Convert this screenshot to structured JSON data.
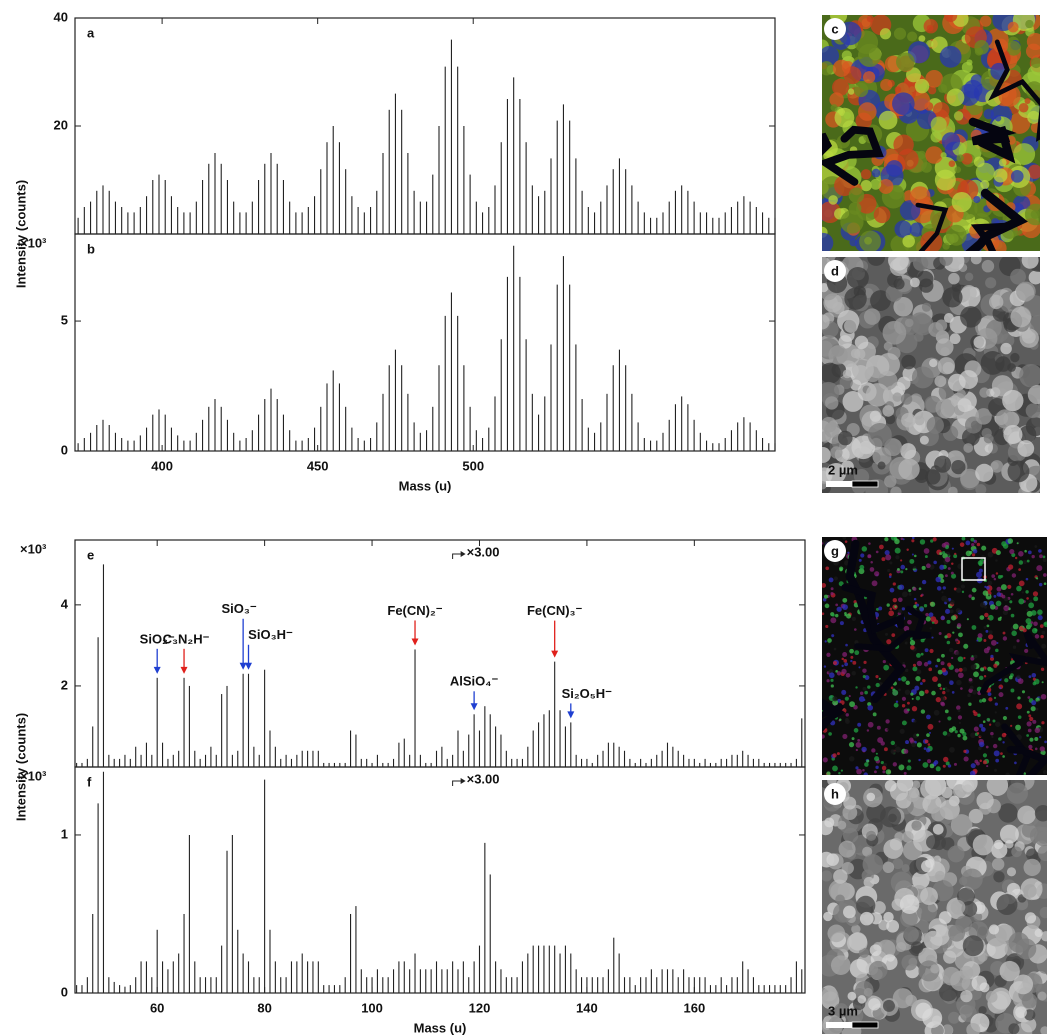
{
  "chart_data": [
    {
      "type": "spectrum",
      "panel_label": "a",
      "ylabel": "Intensity (counts)",
      "color": "#222222",
      "xlim": [
        372,
        597
      ],
      "ylim": [
        0,
        40
      ],
      "yticks": [
        20,
        40
      ],
      "x": [
        373,
        375,
        377,
        379,
        381,
        383,
        385,
        387,
        389,
        391,
        393,
        395,
        397,
        399,
        401,
        403,
        405,
        407,
        409,
        411,
        413,
        415,
        417,
        419,
        421,
        423,
        425,
        427,
        429,
        431,
        433,
        435,
        437,
        439,
        441,
        443,
        445,
        447,
        449,
        451,
        453,
        455,
        457,
        459,
        461,
        463,
        465,
        467,
        469,
        471,
        473,
        475,
        477,
        479,
        481,
        483,
        485,
        487,
        489,
        491,
        493,
        495,
        497,
        499,
        501,
        503,
        505,
        507,
        509,
        511,
        513,
        515,
        517,
        519,
        521,
        523,
        525,
        527,
        529,
        531,
        533,
        535,
        537,
        539,
        541,
        543,
        545,
        547,
        549,
        551,
        553,
        555,
        557,
        559,
        561,
        563,
        565,
        567,
        569,
        571,
        573,
        575,
        577,
        579,
        581,
        583,
        585,
        587,
        589,
        591,
        593,
        595,
        597
      ],
      "values": [
        3,
        5,
        6,
        8,
        9,
        8,
        6,
        5,
        4,
        4,
        5,
        7,
        10,
        11,
        10,
        7,
        5,
        4,
        4,
        6,
        10,
        13,
        15,
        13,
        10,
        6,
        4,
        4,
        6,
        10,
        13,
        15,
        13,
        10,
        6,
        4,
        4,
        5,
        7,
        12,
        17,
        20,
        17,
        12,
        7,
        5,
        4,
        5,
        8,
        15,
        23,
        26,
        23,
        15,
        8,
        6,
        6,
        11,
        20,
        31,
        36,
        31,
        20,
        11,
        6,
        4,
        5,
        9,
        17,
        25,
        29,
        25,
        17,
        9,
        7,
        8,
        14,
        21,
        24,
        21,
        14,
        8,
        5,
        4,
        6,
        9,
        12,
        14,
        12,
        9,
        6,
        4,
        3,
        3,
        4,
        6,
        8,
        9,
        8,
        6,
        4,
        4,
        3,
        3,
        4,
        5,
        6,
        7,
        6,
        5,
        4,
        3,
        3
      ]
    },
    {
      "type": "spectrum",
      "panel_label": "b",
      "y_multiplier": "×10³",
      "xlabel": "Mass (u)",
      "color": "#222222",
      "xlim": [
        372,
        597
      ],
      "xticks": [
        400,
        450,
        500
      ],
      "ylim": [
        0,
        8.35
      ],
      "yticks": [
        0,
        5
      ],
      "x": [
        373,
        375,
        377,
        379,
        381,
        383,
        385,
        387,
        389,
        391,
        393,
        395,
        397,
        399,
        401,
        403,
        405,
        407,
        409,
        411,
        413,
        415,
        417,
        419,
        421,
        423,
        425,
        427,
        429,
        431,
        433,
        435,
        437,
        439,
        441,
        443,
        445,
        447,
        449,
        451,
        453,
        455,
        457,
        459,
        461,
        463,
        465,
        467,
        469,
        471,
        473,
        475,
        477,
        479,
        481,
        483,
        485,
        487,
        489,
        491,
        493,
        495,
        497,
        499,
        501,
        503,
        505,
        507,
        509,
        511,
        513,
        515,
        517,
        519,
        521,
        523,
        525,
        527,
        529,
        531,
        533,
        535,
        537,
        539,
        541,
        543,
        545,
        547,
        549,
        551,
        553,
        555,
        557,
        559,
        561,
        563,
        565,
        567,
        569,
        571,
        573,
        575,
        577,
        579,
        581,
        583,
        585,
        587,
        589,
        591,
        593,
        595,
        597
      ],
      "values": [
        0.3,
        0.5,
        0.7,
        1.0,
        1.2,
        1.0,
        0.7,
        0.5,
        0.4,
        0.4,
        0.6,
        0.9,
        1.4,
        1.6,
        1.4,
        0.9,
        0.6,
        0.4,
        0.4,
        0.7,
        1.2,
        1.7,
        2.0,
        1.7,
        1.2,
        0.7,
        0.4,
        0.5,
        0.8,
        1.4,
        2.0,
        2.4,
        2.0,
        1.4,
        0.8,
        0.4,
        0.4,
        0.5,
        0.9,
        1.7,
        2.6,
        3.1,
        2.6,
        1.7,
        0.9,
        0.5,
        0.4,
        0.5,
        1.1,
        2.2,
        3.3,
        3.9,
        3.3,
        2.2,
        1.1,
        0.7,
        0.8,
        1.7,
        3.3,
        5.2,
        6.1,
        5.2,
        3.3,
        1.7,
        0.8,
        0.5,
        0.9,
        2.1,
        4.3,
        6.7,
        7.9,
        6.7,
        4.3,
        2.2,
        1.4,
        2.1,
        4.1,
        6.4,
        7.5,
        6.4,
        4.1,
        2.0,
        0.9,
        0.7,
        1.1,
        2.2,
        3.3,
        3.9,
        3.3,
        2.2,
        1.1,
        0.5,
        0.4,
        0.4,
        0.7,
        1.2,
        1.8,
        2.1,
        1.8,
        1.2,
        0.7,
        0.4,
        0.3,
        0.3,
        0.5,
        0.8,
        1.1,
        1.3,
        1.1,
        0.8,
        0.5,
        0.3,
        0.3
      ]
    },
    {
      "type": "spectrum",
      "panel_label": "e",
      "y_multiplier": "×10³",
      "ylabel": "Intensity (counts)",
      "color": "#222222",
      "xlim": [
        44.7,
        180.6
      ],
      "ylim": [
        0,
        5.6
      ],
      "yticks": [
        2,
        4
      ],
      "scale_note": {
        "x": 115,
        "label": "×3.00"
      },
      "x": [
        45,
        46,
        47,
        48,
        49,
        50,
        51,
        52,
        53,
        54,
        55,
        56,
        57,
        58,
        59,
        60,
        61,
        62,
        63,
        64,
        65,
        66,
        67,
        68,
        69,
        70,
        71,
        72,
        73,
        74,
        75,
        76,
        77,
        78,
        79,
        80,
        81,
        82,
        83,
        84,
        85,
        86,
        87,
        88,
        89,
        90,
        91,
        92,
        93,
        94,
        95,
        96,
        97,
        98,
        99,
        100,
        101,
        102,
        103,
        104,
        105,
        106,
        107,
        108,
        109,
        110,
        111,
        112,
        113,
        114,
        115,
        116,
        117,
        118,
        119,
        120,
        121,
        122,
        123,
        124,
        125,
        126,
        127,
        128,
        129,
        130,
        131,
        132,
        133,
        134,
        135,
        136,
        137,
        138,
        139,
        140,
        141,
        142,
        143,
        144,
        145,
        146,
        147,
        148,
        149,
        150,
        151,
        152,
        153,
        154,
        155,
        156,
        157,
        158,
        159,
        160,
        161,
        162,
        163,
        164,
        165,
        166,
        167,
        168,
        169,
        170,
        171,
        172,
        173,
        174,
        175,
        176,
        177,
        178,
        179,
        180
      ],
      "values": [
        0.1,
        0.1,
        0.2,
        1.0,
        3.2,
        5.0,
        0.3,
        0.2,
        0.2,
        0.3,
        0.2,
        0.5,
        0.3,
        0.6,
        0.3,
        2.2,
        0.6,
        0.2,
        0.3,
        0.4,
        2.2,
        2.0,
        0.4,
        0.2,
        0.3,
        0.5,
        0.3,
        1.8,
        2.0,
        0.3,
        0.4,
        2.3,
        2.3,
        0.5,
        0.3,
        2.4,
        0.9,
        0.5,
        0.2,
        0.3,
        0.2,
        0.3,
        0.4,
        0.4,
        0.4,
        0.4,
        0.1,
        0.1,
        0.1,
        0.1,
        0.1,
        0.9,
        0.8,
        0.2,
        0.2,
        0.1,
        0.3,
        0.1,
        0.1,
        0.2,
        0.6,
        0.7,
        0.3,
        2.9,
        0.3,
        0.1,
        0.1,
        0.4,
        0.5,
        0.2,
        0.3,
        0.9,
        0.4,
        0.8,
        1.3,
        0.9,
        1.5,
        1.3,
        1.0,
        0.8,
        0.4,
        0.2,
        0.2,
        0.2,
        0.5,
        0.9,
        1.1,
        1.3,
        1.4,
        2.6,
        1.4,
        1.0,
        1.1,
        0.3,
        0.2,
        0.2,
        0.1,
        0.3,
        0.4,
        0.6,
        0.6,
        0.5,
        0.4,
        0.2,
        0.1,
        0.2,
        0.1,
        0.2,
        0.3,
        0.4,
        0.6,
        0.5,
        0.4,
        0.3,
        0.2,
        0.2,
        0.1,
        0.2,
        0.1,
        0.1,
        0.2,
        0.2,
        0.3,
        0.3,
        0.4,
        0.3,
        0.2,
        0.2,
        0.1,
        0.1,
        0.1,
        0.1,
        0.1,
        0.1,
        0.2,
        1.2
      ],
      "annotations": [
        {
          "text": "SiO₂⁻",
          "x": 60,
          "color": "#1f3fd1"
        },
        {
          "text": "C₃N₂H⁻",
          "x": 65,
          "color": "#e0201b"
        },
        {
          "text": "SiO₃⁻",
          "x": 76,
          "color": "#1f3fd1"
        },
        {
          "text": "SiO₃H⁻",
          "x": 77,
          "color": "#1f3fd1"
        },
        {
          "text": "Fe(CN)₂⁻",
          "x": 108,
          "color": "#e0201b"
        },
        {
          "text": "AlSiO₄⁻",
          "x": 119,
          "color": "#1f3fd1"
        },
        {
          "text": "Fe(CN)₃⁻",
          "x": 134,
          "color": "#e0201b"
        },
        {
          "text": "Si₂O₅H⁻",
          "x": 137,
          "color": "#1f3fd1"
        }
      ]
    },
    {
      "type": "spectrum",
      "panel_label": "f",
      "y_multiplier": "×10³",
      "xlabel": "Mass (u)",
      "color": "#222222",
      "xlim": [
        44.7,
        180.6
      ],
      "xticks": [
        60,
        80,
        100,
        120,
        140,
        160
      ],
      "ylim": [
        0,
        1.43
      ],
      "yticks": [
        0,
        1
      ],
      "scale_note": {
        "x": 115,
        "label": "×3.00"
      },
      "x": [
        45,
        46,
        47,
        48,
        49,
        50,
        51,
        52,
        53,
        54,
        55,
        56,
        57,
        58,
        59,
        60,
        61,
        62,
        63,
        64,
        65,
        66,
        67,
        68,
        69,
        70,
        71,
        72,
        73,
        74,
        75,
        76,
        77,
        78,
        79,
        80,
        81,
        82,
        83,
        84,
        85,
        86,
        87,
        88,
        89,
        90,
        91,
        92,
        93,
        94,
        95,
        96,
        97,
        98,
        99,
        100,
        101,
        102,
        103,
        104,
        105,
        106,
        107,
        108,
        109,
        110,
        111,
        112,
        113,
        114,
        115,
        116,
        117,
        118,
        119,
        120,
        121,
        122,
        123,
        124,
        125,
        126,
        127,
        128,
        129,
        130,
        131,
        132,
        133,
        134,
        135,
        136,
        137,
        138,
        139,
        140,
        141,
        142,
        143,
        144,
        145,
        146,
        147,
        148,
        149,
        150,
        151,
        152,
        153,
        154,
        155,
        156,
        157,
        158,
        159,
        160,
        161,
        162,
        163,
        164,
        165,
        166,
        167,
        168,
        169,
        170,
        171,
        172,
        173,
        174,
        175,
        176,
        177,
        178,
        179,
        180
      ],
      "values": [
        0.05,
        0.05,
        0.1,
        0.5,
        1.2,
        1.4,
        0.1,
        0.07,
        0.05,
        0.04,
        0.05,
        0.1,
        0.2,
        0.2,
        0.1,
        0.4,
        0.2,
        0.15,
        0.2,
        0.25,
        0.5,
        1.0,
        0.2,
        0.1,
        0.1,
        0.1,
        0.1,
        0.3,
        0.9,
        1.0,
        0.4,
        0.25,
        0.2,
        0.1,
        0.1,
        1.35,
        0.4,
        0.2,
        0.1,
        0.1,
        0.2,
        0.2,
        0.25,
        0.2,
        0.2,
        0.2,
        0.05,
        0.05,
        0.05,
        0.05,
        0.1,
        0.5,
        0.55,
        0.15,
        0.1,
        0.1,
        0.15,
        0.1,
        0.1,
        0.15,
        0.2,
        0.2,
        0.15,
        0.25,
        0.15,
        0.15,
        0.15,
        0.2,
        0.15,
        0.15,
        0.2,
        0.15,
        0.2,
        0.1,
        0.2,
        0.3,
        0.95,
        0.75,
        0.2,
        0.15,
        0.1,
        0.1,
        0.1,
        0.2,
        0.25,
        0.3,
        0.3,
        0.3,
        0.3,
        0.3,
        0.25,
        0.3,
        0.25,
        0.15,
        0.1,
        0.1,
        0.1,
        0.1,
        0.1,
        0.15,
        0.35,
        0.25,
        0.1,
        0.1,
        0.05,
        0.1,
        0.1,
        0.15,
        0.1,
        0.15,
        0.15,
        0.15,
        0.1,
        0.15,
        0.1,
        0.1,
        0.1,
        0.1,
        0.05,
        0.05,
        0.1,
        0.05,
        0.1,
        0.1,
        0.2,
        0.15,
        0.1,
        0.05,
        0.05,
        0.05,
        0.05,
        0.05,
        0.05,
        0.1,
        0.2,
        0.15
      ]
    }
  ],
  "images": [
    {
      "panel_label": "c"
    },
    {
      "panel_label": "d",
      "scale_bar": "2 µm"
    },
    {
      "panel_label": "g"
    },
    {
      "panel_label": "h",
      "scale_bar": "3 µm"
    }
  ]
}
